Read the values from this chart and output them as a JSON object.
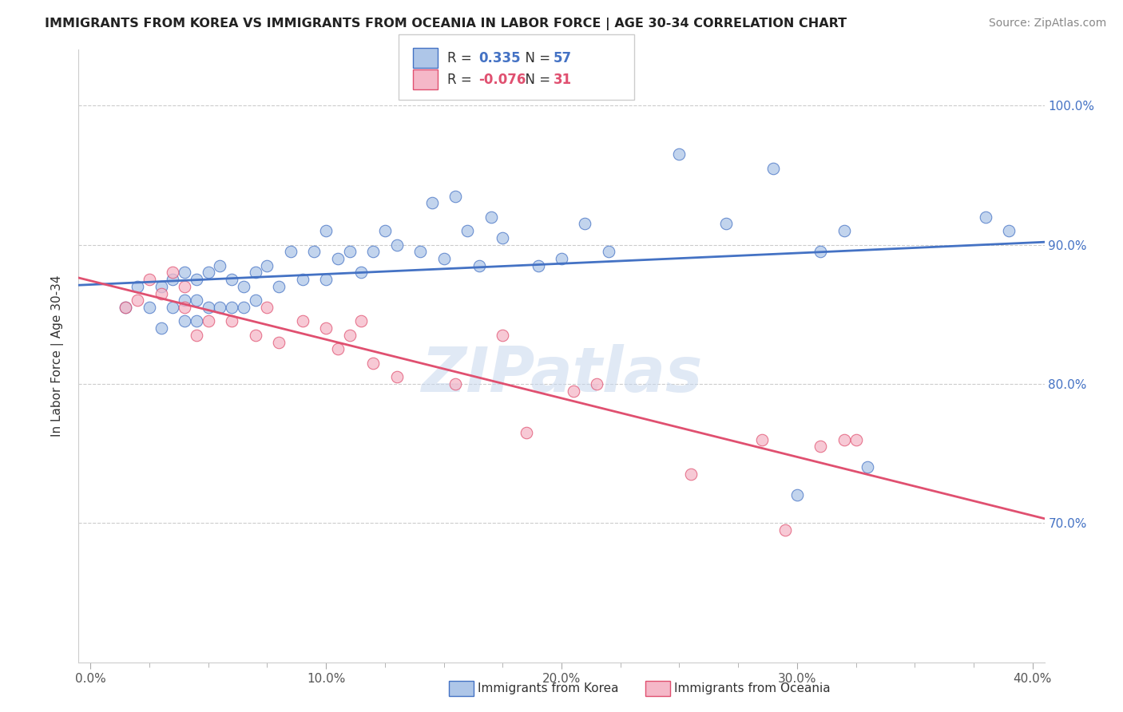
{
  "title": "IMMIGRANTS FROM KOREA VS IMMIGRANTS FROM OCEANIA IN LABOR FORCE | AGE 30-34 CORRELATION CHART",
  "source": "Source: ZipAtlas.com",
  "ylabel": "In Labor Force | Age 30-34",
  "xlim": [
    -0.005,
    0.405
  ],
  "ylim": [
    0.6,
    1.04
  ],
  "ytick_labels": [
    "70.0%",
    "80.0%",
    "90.0%",
    "100.0%"
  ],
  "ytick_values": [
    0.7,
    0.8,
    0.9,
    1.0
  ],
  "xtick_labels": [
    "0.0%",
    "",
    "",
    "",
    "10.0%",
    "",
    "",
    "",
    "20.0%",
    "",
    "",
    "",
    "30.0%",
    "",
    "",
    "",
    "40.0%"
  ],
  "xtick_values": [
    0.0,
    0.025,
    0.05,
    0.075,
    0.1,
    0.125,
    0.15,
    0.175,
    0.2,
    0.225,
    0.25,
    0.275,
    0.3,
    0.325,
    0.35,
    0.375,
    0.4
  ],
  "korea_R": 0.335,
  "korea_N": 57,
  "oceania_R": -0.076,
  "oceania_N": 31,
  "korea_color": "#aec6e8",
  "oceania_color": "#f5b8c8",
  "korea_line_color": "#4472c4",
  "oceania_line_color": "#e05070",
  "legend_label_korea": "Immigrants from Korea",
  "legend_label_oceania": "Immigrants from Oceania",
  "watermark": "ZIPatlas",
  "korea_x": [
    0.015,
    0.02,
    0.025,
    0.03,
    0.03,
    0.035,
    0.035,
    0.04,
    0.04,
    0.04,
    0.045,
    0.045,
    0.045,
    0.05,
    0.05,
    0.055,
    0.055,
    0.06,
    0.06,
    0.065,
    0.065,
    0.07,
    0.07,
    0.075,
    0.08,
    0.085,
    0.09,
    0.095,
    0.1,
    0.1,
    0.105,
    0.11,
    0.115,
    0.12,
    0.125,
    0.13,
    0.14,
    0.145,
    0.15,
    0.155,
    0.16,
    0.165,
    0.17,
    0.175,
    0.19,
    0.2,
    0.21,
    0.22,
    0.25,
    0.27,
    0.29,
    0.3,
    0.31,
    0.32,
    0.33,
    0.38,
    0.39
  ],
  "korea_y": [
    0.855,
    0.87,
    0.855,
    0.84,
    0.87,
    0.855,
    0.875,
    0.845,
    0.86,
    0.88,
    0.845,
    0.86,
    0.875,
    0.855,
    0.88,
    0.855,
    0.885,
    0.855,
    0.875,
    0.855,
    0.87,
    0.86,
    0.88,
    0.885,
    0.87,
    0.895,
    0.875,
    0.895,
    0.875,
    0.91,
    0.89,
    0.895,
    0.88,
    0.895,
    0.91,
    0.9,
    0.895,
    0.93,
    0.89,
    0.935,
    0.91,
    0.885,
    0.92,
    0.905,
    0.885,
    0.89,
    0.915,
    0.895,
    0.965,
    0.915,
    0.955,
    0.72,
    0.895,
    0.91,
    0.74,
    0.92,
    0.91
  ],
  "oceania_x": [
    0.015,
    0.02,
    0.025,
    0.03,
    0.035,
    0.04,
    0.04,
    0.045,
    0.05,
    0.06,
    0.07,
    0.075,
    0.08,
    0.09,
    0.1,
    0.105,
    0.11,
    0.115,
    0.12,
    0.13,
    0.155,
    0.175,
    0.185,
    0.205,
    0.215,
    0.255,
    0.285,
    0.295,
    0.31,
    0.32,
    0.325
  ],
  "oceania_y": [
    0.855,
    0.86,
    0.875,
    0.865,
    0.88,
    0.855,
    0.87,
    0.835,
    0.845,
    0.845,
    0.835,
    0.855,
    0.83,
    0.845,
    0.84,
    0.825,
    0.835,
    0.845,
    0.815,
    0.805,
    0.8,
    0.835,
    0.765,
    0.795,
    0.8,
    0.735,
    0.76,
    0.695,
    0.755,
    0.76,
    0.76
  ]
}
